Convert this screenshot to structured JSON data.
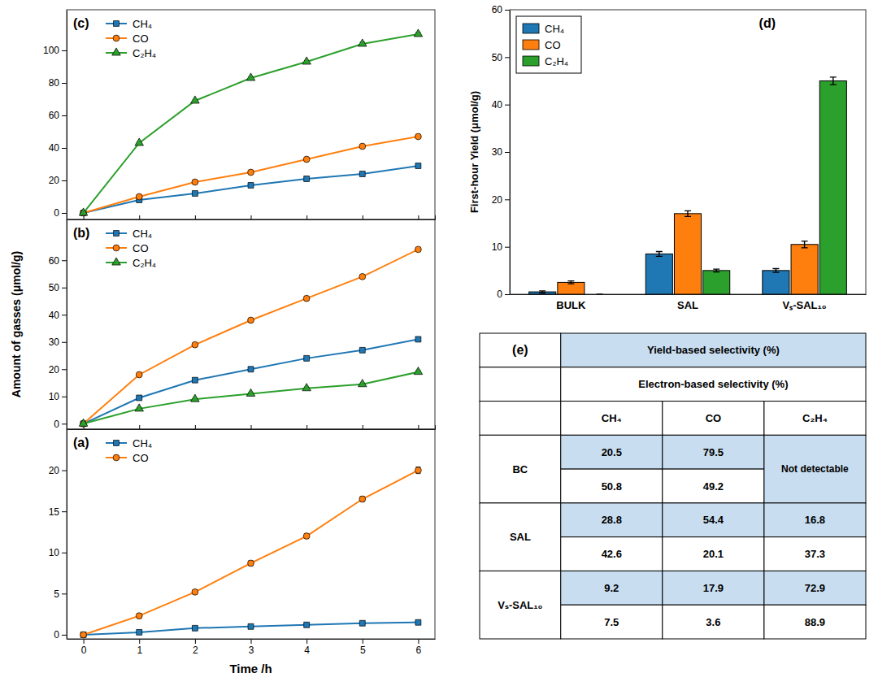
{
  "chart_data": [
    {
      "type": "line",
      "title": "(a)",
      "xlabel": "Time /h",
      "x": [
        0,
        1,
        2,
        3,
        4,
        5,
        6
      ],
      "series": [
        {
          "name": "CH₄",
          "marker": "square",
          "values": [
            0,
            0.3,
            0.8,
            1.0,
            1.2,
            1.4,
            1.5
          ],
          "errors": [
            0,
            0.15,
            0.1,
            0.1,
            0.1,
            0.1,
            0.15
          ]
        },
        {
          "name": "CO",
          "marker": "circle",
          "values": [
            0,
            2.3,
            5.2,
            8.7,
            12.0,
            16.5,
            20.0
          ],
          "errors": [
            0,
            0.3,
            0.25,
            0.3,
            0.25,
            0.3,
            0.4
          ]
        }
      ],
      "xlim": [
        -0.3,
        6.3
      ],
      "xticks": [
        0,
        1,
        2,
        3,
        4,
        5,
        6
      ],
      "ylim": [
        -0.5,
        25
      ],
      "yticks": [
        0,
        5,
        10,
        15,
        20
      ],
      "legend": "upper left",
      "grid": false
    },
    {
      "type": "line",
      "title": "(b)",
      "ylabel": "Amount of gasses (μmol/g)",
      "x": [
        0,
        1,
        2,
        3,
        4,
        5,
        6
      ],
      "series": [
        {
          "name": "CH₄",
          "marker": "square",
          "values": [
            0,
            9.5,
            16.0,
            20.0,
            24.0,
            27.0,
            31.0
          ],
          "errors": [
            0,
            0.4,
            0.4,
            0.5,
            0.5,
            0.5,
            0.6
          ]
        },
        {
          "name": "CO",
          "marker": "circle",
          "values": [
            0,
            18.0,
            29.0,
            38.0,
            46.0,
            54.0,
            64.0
          ],
          "errors": [
            0,
            0.5,
            0.5,
            0.6,
            0.6,
            0.6,
            0.7
          ]
        },
        {
          "name": "C₂H₄",
          "marker": "triangle",
          "values": [
            0,
            5.5,
            9.0,
            11.0,
            13.0,
            14.5,
            19.0
          ],
          "errors": [
            0,
            0.3,
            0.3,
            0.4,
            0.4,
            0.4,
            0.5
          ]
        }
      ],
      "xlim": [
        -0.3,
        6.3
      ],
      "xticks": [
        0,
        1,
        2,
        3,
        4,
        5,
        6
      ],
      "ylim": [
        -2,
        75
      ],
      "yticks": [
        0,
        10,
        20,
        30,
        40,
        50,
        60
      ],
      "tick_labels": "y",
      "legend": "upper left",
      "grid": false
    },
    {
      "type": "line",
      "title": "(c)",
      "x": [
        0,
        1,
        2,
        3,
        4,
        5,
        6
      ],
      "series": [
        {
          "name": "CH₄",
          "marker": "square",
          "values": [
            0,
            8.0,
            12.0,
            17.0,
            21.0,
            24.0,
            29.0
          ],
          "errors": [
            0,
            0.4,
            0.4,
            0.5,
            0.5,
            0.5,
            0.6
          ]
        },
        {
          "name": "CO",
          "marker": "circle",
          "values": [
            0,
            10.0,
            19.0,
            25.0,
            33.0,
            41.0,
            47.0
          ],
          "errors": [
            0,
            0.4,
            0.5,
            0.5,
            0.6,
            0.6,
            0.7
          ]
        },
        {
          "name": "C₂H₄",
          "marker": "triangle",
          "values": [
            0,
            43.0,
            69.0,
            83.0,
            93.0,
            104.0,
            110.0
          ],
          "errors": [
            0,
            0.5,
            0.6,
            0.8,
            0.8,
            1.0,
            1.2
          ]
        }
      ],
      "xlim": [
        -0.3,
        6.3
      ],
      "xticks": [
        0,
        1,
        2,
        3,
        4,
        5,
        6
      ],
      "ylim": [
        -4,
        125
      ],
      "yticks": [
        0,
        20,
        40,
        60,
        80,
        100
      ],
      "tick_labels": "y",
      "legend": "upper left",
      "grid": false
    },
    {
      "type": "bar",
      "title": "(d)",
      "ylabel": "First-hour Yield (μmol/g)",
      "categories": [
        "BULK",
        "SAL",
        "Vₛ-SAL₁₀"
      ],
      "series": [
        {
          "name": "CH₄",
          "values": [
            0.5,
            8.5,
            5.0
          ],
          "errors": [
            0.2,
            0.5,
            0.4
          ]
        },
        {
          "name": "CO",
          "values": [
            2.5,
            17.0,
            10.5
          ],
          "errors": [
            0.3,
            0.6,
            0.7
          ]
        },
        {
          "name": "C₂H₄",
          "values": [
            0.0,
            5.0,
            45.0
          ],
          "errors": [
            0.0,
            0.3,
            0.8
          ]
        }
      ],
      "ylim": [
        0,
        60
      ],
      "yticks": [
        0,
        10,
        20,
        30,
        40,
        50,
        60
      ],
      "legend": "upper left",
      "grid": false
    },
    {
      "type": "table",
      "title": "(e)",
      "categories": [
        "BC",
        "SAL",
        "Vₛ-SAL₁₀"
      ],
      "columns": [
        "CH₄",
        "CO",
        "C₂H₄"
      ],
      "series": [
        {
          "name": "Yield-based selectivity (%)",
          "color": "#c8ddf0",
          "values": [
            [
              20.5,
              79.5,
              null
            ],
            [
              28.8,
              54.4,
              16.8
            ],
            [
              9.2,
              17.9,
              72.9
            ]
          ]
        },
        {
          "name": "Electron-based selectivity (%)",
          "color": "#ffffff",
          "values": [
            [
              50.8,
              49.2,
              null
            ],
            [
              42.6,
              20.1,
              37.3
            ],
            [
              7.5,
              3.6,
              88.9
            ]
          ]
        }
      ],
      "annotations": [
        {
          "text": "Not detectable",
          "category": "BC",
          "column": "C₂H₄"
        }
      ]
    }
  ]
}
